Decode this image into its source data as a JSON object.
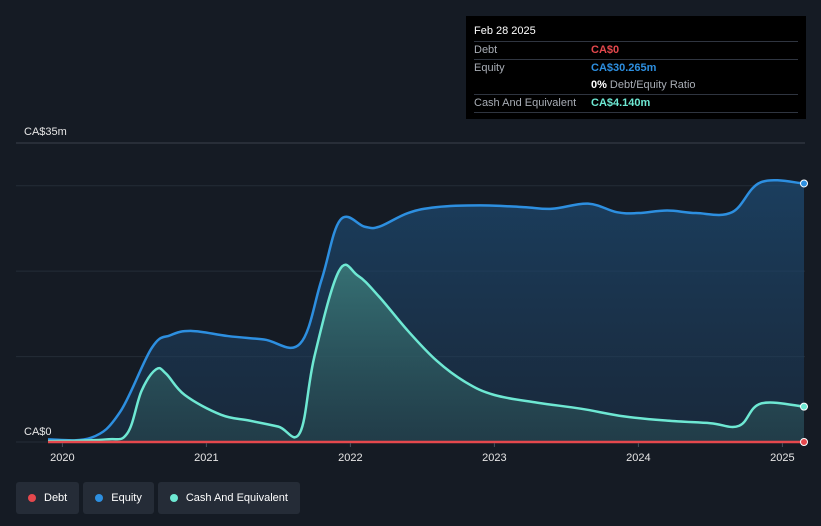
{
  "tooltip": {
    "date": "Feb 28 2025",
    "debt_label": "Debt",
    "debt_value": "CA$0",
    "equity_label": "Equity",
    "equity_value": "CA$30.265m",
    "ratio_value": "0%",
    "ratio_label": "Debt/Equity Ratio",
    "cash_label": "Cash And Equivalent",
    "cash_value": "CA$4.140m"
  },
  "legend": [
    {
      "label": "Debt",
      "color": "#e5484d"
    },
    {
      "label": "Equity",
      "color": "#2d8fe0"
    },
    {
      "label": "Cash And Equivalent",
      "color": "#6ee8d3"
    }
  ],
  "colors": {
    "debt": "#e5484d",
    "equity": "#2d8fe0",
    "cash": "#6ee8d3"
  },
  "chart_data": {
    "type": "area",
    "y_top_label": "CA$35m",
    "y_bottom_label": "CA$0",
    "ylim": [
      0,
      35
    ],
    "x_ticks": [
      "2020",
      "2021",
      "2022",
      "2023",
      "2024",
      "2025"
    ],
    "grid": true,
    "series": [
      {
        "name": "Equity",
        "x": [
          2019.9,
          2020.2,
          2020.4,
          2020.62,
          2020.75,
          2020.9,
          2021.15,
          2021.4,
          2021.65,
          2021.8,
          2021.93,
          2022.1,
          2022.2,
          2022.4,
          2022.6,
          2022.9,
          2023.2,
          2023.4,
          2023.65,
          2023.85,
          2024.0,
          2024.2,
          2024.4,
          2024.65,
          2024.85,
          2025.15
        ],
        "values": [
          0.3,
          0.5,
          3.5,
          11.0,
          12.5,
          13.0,
          12.4,
          12.0,
          11.5,
          19.0,
          26.0,
          25.2,
          25.2,
          26.8,
          27.5,
          27.7,
          27.5,
          27.3,
          27.9,
          26.9,
          26.8,
          27.1,
          26.8,
          26.9,
          30.4,
          30.265
        ]
      },
      {
        "name": "Cash And Equivalent",
        "x": [
          2019.9,
          2020.3,
          2020.45,
          2020.55,
          2020.65,
          2020.72,
          2020.85,
          2021.1,
          2021.3,
          2021.5,
          2021.65,
          2021.75,
          2021.92,
          2022.05,
          2022.2,
          2022.4,
          2022.6,
          2022.8,
          2023.0,
          2023.3,
          2023.6,
          2023.9,
          2024.2,
          2024.5,
          2024.7,
          2024.85,
          2025.15
        ],
        "values": [
          0.1,
          0.3,
          1.0,
          6.0,
          8.5,
          8.0,
          5.5,
          3.2,
          2.5,
          1.8,
          1.1,
          10.0,
          20.0,
          19.5,
          17.0,
          13.0,
          9.5,
          7.0,
          5.5,
          4.6,
          3.9,
          3.0,
          2.5,
          2.2,
          1.9,
          4.5,
          4.14
        ]
      },
      {
        "name": "Debt",
        "x": [
          2019.9,
          2025.15
        ],
        "values": [
          0,
          0
        ]
      }
    ]
  }
}
